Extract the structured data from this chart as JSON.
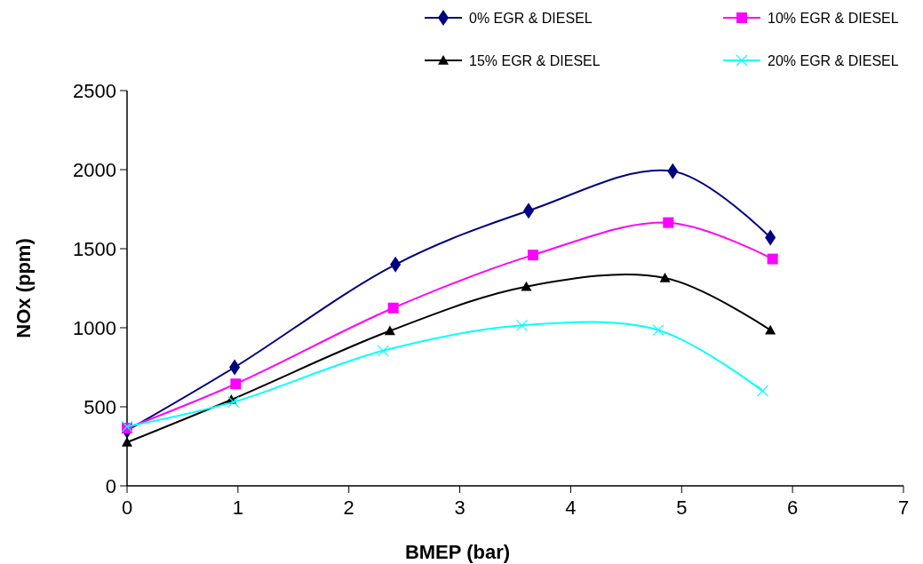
{
  "chart_data": {
    "type": "line",
    "xlabel": "BMEP (bar)",
    "ylabel": "NOx (ppm)",
    "xlim": [
      0,
      7
    ],
    "xticks": [
      0,
      1,
      2,
      3,
      4,
      5,
      6,
      7
    ],
    "ylim": [
      0,
      2500
    ],
    "yticks": [
      0,
      500,
      1000,
      1500,
      2000,
      2500
    ],
    "grid": false,
    "legend": "top",
    "line_style": "solid",
    "series": [
      {
        "name": "0% EGR & DIESEL",
        "color": "#000080",
        "marker": "diamond",
        "x": [
          0,
          0.97,
          2.42,
          3.62,
          4.92,
          5.8
        ],
        "values": [
          350,
          750,
          1400,
          1740,
          1990,
          1570
        ]
      },
      {
        "name": "10% EGR & DIESEL",
        "color": "#ff00ff",
        "marker": "square",
        "x": [
          0,
          0.98,
          2.4,
          3.66,
          4.88,
          5.82
        ],
        "values": [
          365,
          645,
          1125,
          1460,
          1665,
          1435
        ]
      },
      {
        "name": "15% EGR & DIESEL",
        "color": "#000000",
        "marker": "triangle",
        "x": [
          0,
          0.94,
          2.37,
          3.6,
          4.85,
          5.8
        ],
        "values": [
          275,
          545,
          980,
          1260,
          1315,
          985
        ]
      },
      {
        "name": "20% EGR & DIESEL",
        "color": "#00ffff",
        "marker": "cross",
        "x": [
          0,
          0.96,
          2.31,
          3.56,
          4.79,
          5.73
        ],
        "values": [
          375,
          530,
          855,
          1015,
          985,
          600
        ]
      }
    ]
  }
}
